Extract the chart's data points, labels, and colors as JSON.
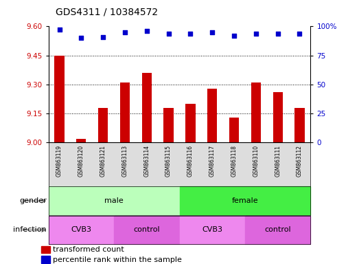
{
  "title": "GDS4311 / 10384572",
  "samples": [
    "GSM863119",
    "GSM863120",
    "GSM863121",
    "GSM863113",
    "GSM863114",
    "GSM863115",
    "GSM863116",
    "GSM863117",
    "GSM863118",
    "GSM863110",
    "GSM863111",
    "GSM863112"
  ],
  "bar_values": [
    9.45,
    9.02,
    9.18,
    9.31,
    9.36,
    9.18,
    9.2,
    9.28,
    9.13,
    9.31,
    9.26,
    9.18
  ],
  "blue_values": [
    97,
    90,
    91,
    95,
    96,
    94,
    94,
    95,
    92,
    94,
    94,
    94
  ],
  "ylim_left": [
    9.0,
    9.6
  ],
  "ylim_right": [
    0,
    100
  ],
  "yticks_left": [
    9.0,
    9.15,
    9.3,
    9.45,
    9.6
  ],
  "yticks_right": [
    0,
    25,
    50,
    75,
    100
  ],
  "bar_color": "#cc0000",
  "dot_color": "#0000cc",
  "bar_bottom": 9.0,
  "gender_groups": [
    {
      "label": "male",
      "start": 0,
      "end": 6,
      "color": "#bbffbb"
    },
    {
      "label": "female",
      "start": 6,
      "end": 12,
      "color": "#44ee44"
    }
  ],
  "infection_groups": [
    {
      "label": "CVB3",
      "start": 0,
      "end": 3,
      "color": "#ee88ee"
    },
    {
      "label": "control",
      "start": 3,
      "end": 6,
      "color": "#dd66dd"
    },
    {
      "label": "CVB3",
      "start": 6,
      "end": 9,
      "color": "#ee88ee"
    },
    {
      "label": "control",
      "start": 9,
      "end": 12,
      "color": "#dd66dd"
    }
  ],
  "legend_items": [
    {
      "label": "transformed count",
      "color": "#cc0000"
    },
    {
      "label": "percentile rank within the sample",
      "color": "#0000cc"
    }
  ],
  "tick_color_left": "#cc0000",
  "tick_color_right": "#0000cc",
  "grid_color": "#000000",
  "background_color": "#ffffff",
  "title_fontsize": 10,
  "axis_fontsize": 7.5,
  "label_fontsize": 8,
  "xtick_fontsize": 5.5,
  "legend_fontsize": 8
}
